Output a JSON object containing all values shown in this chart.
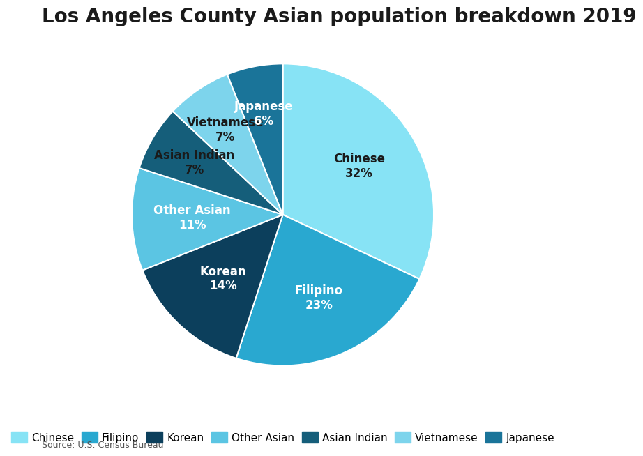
{
  "title": "Los Angeles County Asian population breakdown 2019",
  "source": "Source: U.S. Census Bureau",
  "labels": [
    "Chinese",
    "Filipino",
    "Korean",
    "Other Asian",
    "Asian Indian",
    "Vietnamese",
    "Japanese"
  ],
  "values": [
    32,
    23,
    14,
    11,
    7,
    7,
    6
  ],
  "colors": [
    "#87E3F5",
    "#29A8D0",
    "#0C3F5C",
    "#5BC5E3",
    "#155E7A",
    "#7DD4EC",
    "#1A7499"
  ],
  "label_colors": {
    "Chinese": "#1a1a1a",
    "Filipino": "#ffffff",
    "Korean": "#ffffff",
    "Other Asian": "#ffffff",
    "Asian Indian": "#1a1a1a",
    "Vietnamese": "#1a1a1a",
    "Japanese": "#ffffff"
  },
  "label_radii": [
    0.6,
    0.6,
    0.58,
    0.6,
    0.68,
    0.68,
    0.68
  ],
  "title_fontsize": 20,
  "label_fontsize": 12,
  "legend_fontsize": 11,
  "background_color": "#ffffff"
}
